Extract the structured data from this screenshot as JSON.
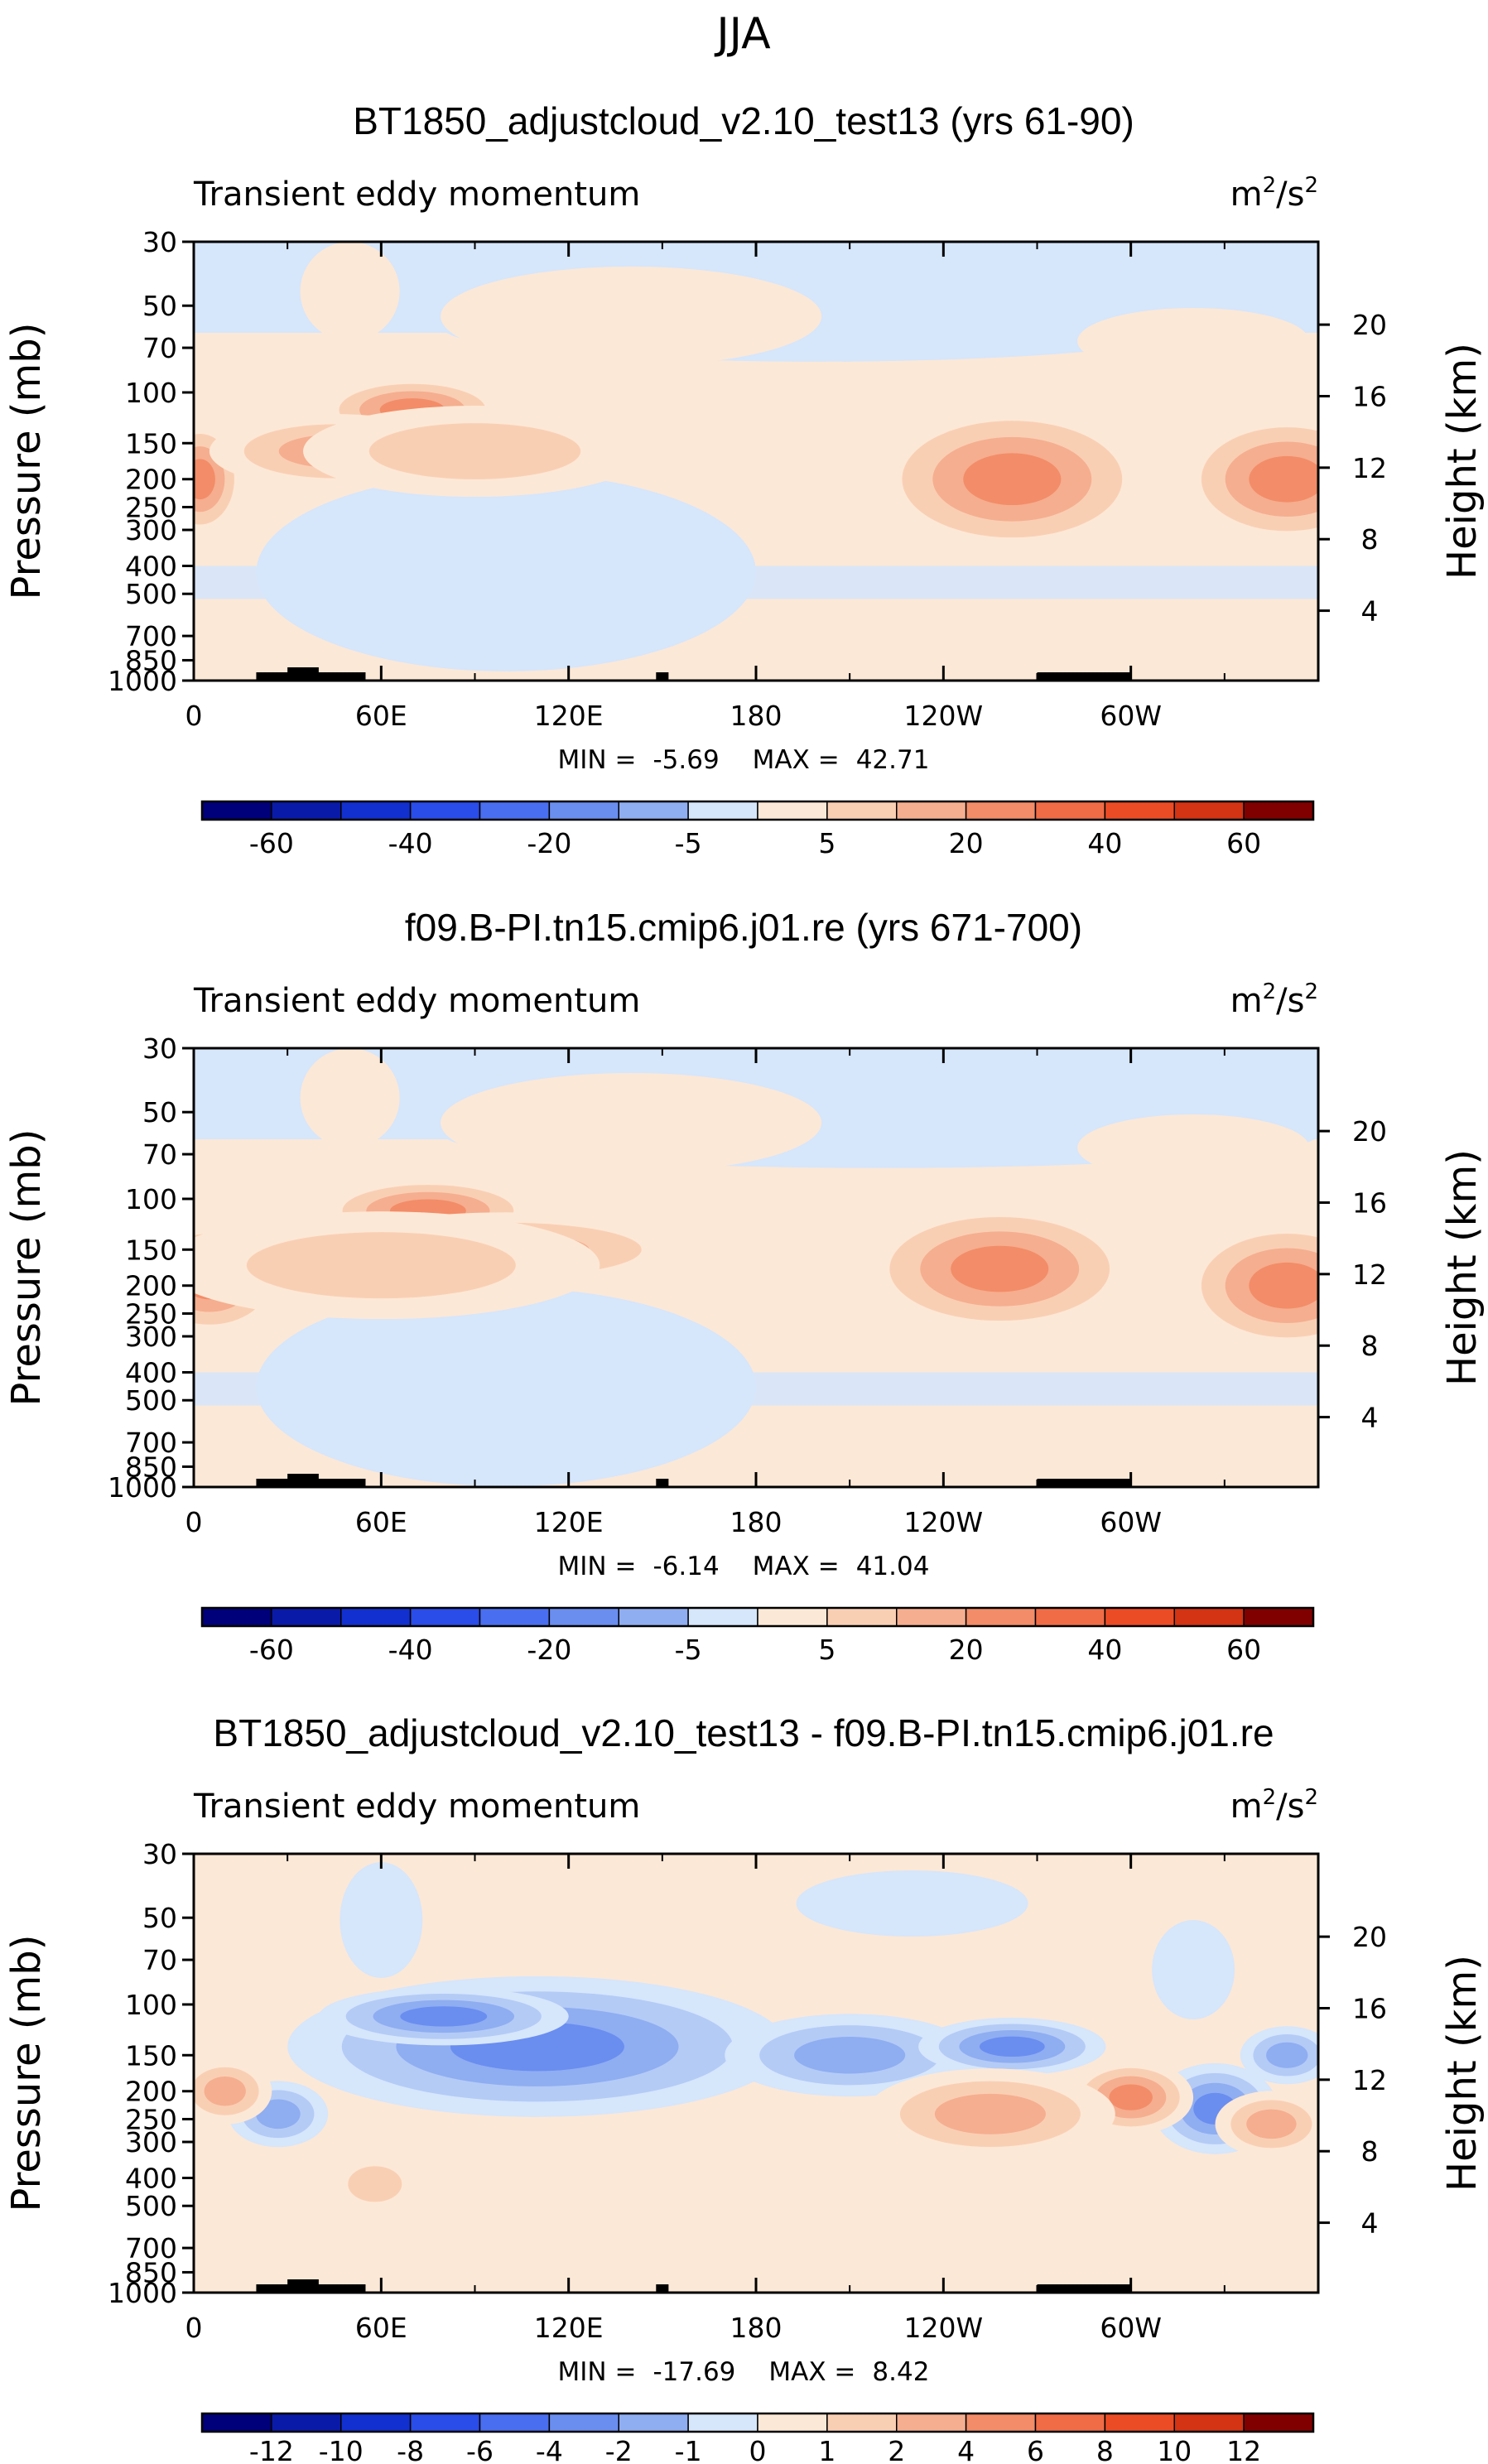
{
  "figure": {
    "season": "JJA",
    "colors": {
      "positive": [
        "#fce8d6",
        "#f9cfb4",
        "#f5ae8f",
        "#f38c68",
        "#f06c46",
        "#ec4c25",
        "#d43314",
        "#b11a0b",
        "#800000"
      ],
      "negative": [
        "#d6e6fb",
        "#b4cbf6",
        "#8fadf1",
        "#6a8df0",
        "#4a6ef0",
        "#2a4ce9",
        "#1230cf",
        "#0a1aa8",
        "#00007a"
      ],
      "land": "#000000"
    }
  },
  "chart_data": [
    {
      "type": "heatmap",
      "title": "BT1850_adjustcloud_v2.10_test13 (yrs 61-90)",
      "left_string": "Transient eddy momentum",
      "units_base": "m",
      "units_exp1": "2",
      "units_mid": "/s",
      "units_exp2": "2",
      "xlabel": "",
      "ylabel": "Pressure (mb)",
      "ylabel_right": "Height (km)",
      "x_ticks": [
        "0",
        "60E",
        "120E",
        "180",
        "120W",
        "60W"
      ],
      "y_ticks": [
        "30",
        "50",
        "70",
        "100",
        "150",
        "200",
        "250",
        "300",
        "400",
        "500",
        "700",
        "850",
        "1000"
      ],
      "y_ticks_right": [
        "20",
        "16",
        "12",
        "8",
        "4"
      ],
      "xlim": [
        0,
        360
      ],
      "ylim": [
        1000,
        30
      ],
      "stats": {
        "min_label": "MIN =",
        "min": "-5.69",
        "max_label": "MAX =",
        "max": "42.71"
      },
      "colorbar_ticks": [
        "-60",
        "-40",
        "-20",
        "-5",
        "5",
        "20",
        "40",
        "60"
      ],
      "levels": [
        -70,
        -60,
        -50,
        -40,
        -30,
        -20,
        -10,
        -5,
        0,
        5,
        10,
        20,
        30,
        40,
        50,
        60,
        70
      ],
      "blobs": [
        {
          "lon": 2,
          "p": 200,
          "level": 4,
          "w": 14,
          "h": 70
        },
        {
          "lon": 70,
          "p": 115,
          "level": 4,
          "w": 30,
          "h": 40
        },
        {
          "lon": 45,
          "p": 160,
          "level": 3,
          "w": 40,
          "h": 45
        },
        {
          "lon": 90,
          "p": 160,
          "level": 2,
          "w": 55,
          "h": 55
        },
        {
          "lon": 262,
          "p": 200,
          "level": 4,
          "w": 45,
          "h": 90
        },
        {
          "lon": 350,
          "p": 200,
          "level": 4,
          "w": 35,
          "h": 80
        }
      ],
      "negative_regions": [
        {
          "lon": 30,
          "p": 40,
          "w": 50,
          "h": 25
        },
        {
          "lon": 200,
          "p": 60,
          "w": 120,
          "h": 40
        },
        {
          "lon": 100,
          "p": 420,
          "w": 80,
          "h": 120
        }
      ]
    },
    {
      "type": "heatmap",
      "title": "f09.B-PI.tn15.cmip6.j01.re (yrs 671-700)",
      "left_string": "Transient eddy momentum",
      "units_base": "m",
      "units_exp1": "2",
      "units_mid": "/s",
      "units_exp2": "2",
      "xlabel": "",
      "ylabel": "Pressure (mb)",
      "ylabel_right": "Height (km)",
      "x_ticks": [
        "0",
        "60E",
        "120E",
        "180",
        "120W",
        "60W"
      ],
      "y_ticks": [
        "30",
        "50",
        "70",
        "100",
        "150",
        "200",
        "250",
        "300",
        "400",
        "500",
        "700",
        "850",
        "1000"
      ],
      "y_ticks_right": [
        "20",
        "16",
        "12",
        "8",
        "4"
      ],
      "xlim": [
        0,
        360
      ],
      "ylim": [
        1000,
        30
      ],
      "stats": {
        "min_label": "MIN =",
        "min": "-6.14",
        "max_label": "MAX =",
        "max": "41.04"
      },
      "colorbar_ticks": [
        "-60",
        "-40",
        "-20",
        "-5",
        "5",
        "20",
        "40",
        "60"
      ],
      "levels": [
        -70,
        -60,
        -50,
        -40,
        -30,
        -20,
        -10,
        -5,
        0,
        5,
        10,
        20,
        30,
        40,
        50,
        60,
        70
      ],
      "blobs": [
        {
          "lon": 5,
          "p": 190,
          "level": 4,
          "w": 25,
          "h": 70
        },
        {
          "lon": 75,
          "p": 110,
          "level": 4,
          "w": 35,
          "h": 40
        },
        {
          "lon": 100,
          "p": 150,
          "level": 3,
          "w": 60,
          "h": 45
        },
        {
          "lon": 60,
          "p": 170,
          "level": 2,
          "w": 70,
          "h": 65
        },
        {
          "lon": 258,
          "p": 175,
          "level": 4,
          "w": 45,
          "h": 80
        },
        {
          "lon": 350,
          "p": 200,
          "level": 4,
          "w": 35,
          "h": 80
        }
      ],
      "negative_regions": [
        {
          "lon": 40,
          "p": 40,
          "w": 60,
          "h": 25
        },
        {
          "lon": 220,
          "p": 60,
          "w": 140,
          "h": 40
        },
        {
          "lon": 100,
          "p": 450,
          "w": 80,
          "h": 120
        }
      ]
    },
    {
      "type": "heatmap",
      "title": "BT1850_adjustcloud_v2.10_test13 - f09.B-PI.tn15.cmip6.j01.re",
      "left_string": "Transient eddy momentum",
      "units_base": "m",
      "units_exp1": "2",
      "units_mid": "/s",
      "units_exp2": "2",
      "xlabel": "",
      "ylabel": "Pressure (mb)",
      "ylabel_right": "Height (km)",
      "x_ticks": [
        "0",
        "60E",
        "120E",
        "180",
        "120W",
        "60W"
      ],
      "y_ticks": [
        "30",
        "50",
        "70",
        "100",
        "150",
        "200",
        "250",
        "300",
        "400",
        "500",
        "700",
        "850",
        "1000"
      ],
      "y_ticks_right": [
        "20",
        "16",
        "12",
        "8",
        "4"
      ],
      "xlim": [
        0,
        360
      ],
      "ylim": [
        1000,
        30
      ],
      "stats": {
        "min_label": "MIN =",
        "min": "-17.69",
        "max_label": "MAX =",
        "max": "8.42"
      },
      "colorbar_ticks": [
        "-12",
        "-10",
        "-8",
        "-6",
        "-4",
        "-2",
        "-1",
        "0",
        "1",
        "2",
        "4",
        "6",
        "8",
        "10",
        "12"
      ],
      "levels": [
        -14,
        -12,
        -10,
        -8,
        -6,
        -4,
        -2,
        -1,
        0,
        1,
        2,
        4,
        6,
        8,
        10,
        12,
        14
      ],
      "blobs": [
        {
          "lon": 125,
          "p": 140,
          "level": -7,
          "w": 40,
          "h": 45
        },
        {
          "lon": 110,
          "p": 140,
          "level": -4,
          "w": 80,
          "h": 85
        },
        {
          "lon": 80,
          "p": 110,
          "level": -4,
          "w": 40,
          "h": 35
        },
        {
          "lon": 210,
          "p": 150,
          "level": -3,
          "w": 40,
          "h": 50
        },
        {
          "lon": 262,
          "p": 140,
          "level": -4,
          "w": 30,
          "h": 35
        },
        {
          "lon": 327,
          "p": 230,
          "level": -4,
          "w": 20,
          "h": 55
        },
        {
          "lon": 350,
          "p": 150,
          "level": -3,
          "w": 15,
          "h": 35
        },
        {
          "lon": 27,
          "p": 240,
          "level": -3,
          "w": 16,
          "h": 40
        },
        {
          "lon": 10,
          "p": 200,
          "level": 3,
          "w": 15,
          "h": 40
        },
        {
          "lon": 300,
          "p": 210,
          "level": 4,
          "w": 20,
          "h": 45
        },
        {
          "lon": 255,
          "p": 240,
          "level": 3,
          "w": 40,
          "h": 55
        },
        {
          "lon": 345,
          "p": 260,
          "level": 3,
          "w": 18,
          "h": 40
        },
        {
          "lon": 58,
          "p": 420,
          "level": 2,
          "w": 14,
          "h": 35
        }
      ],
      "negative_regions": []
    }
  ]
}
